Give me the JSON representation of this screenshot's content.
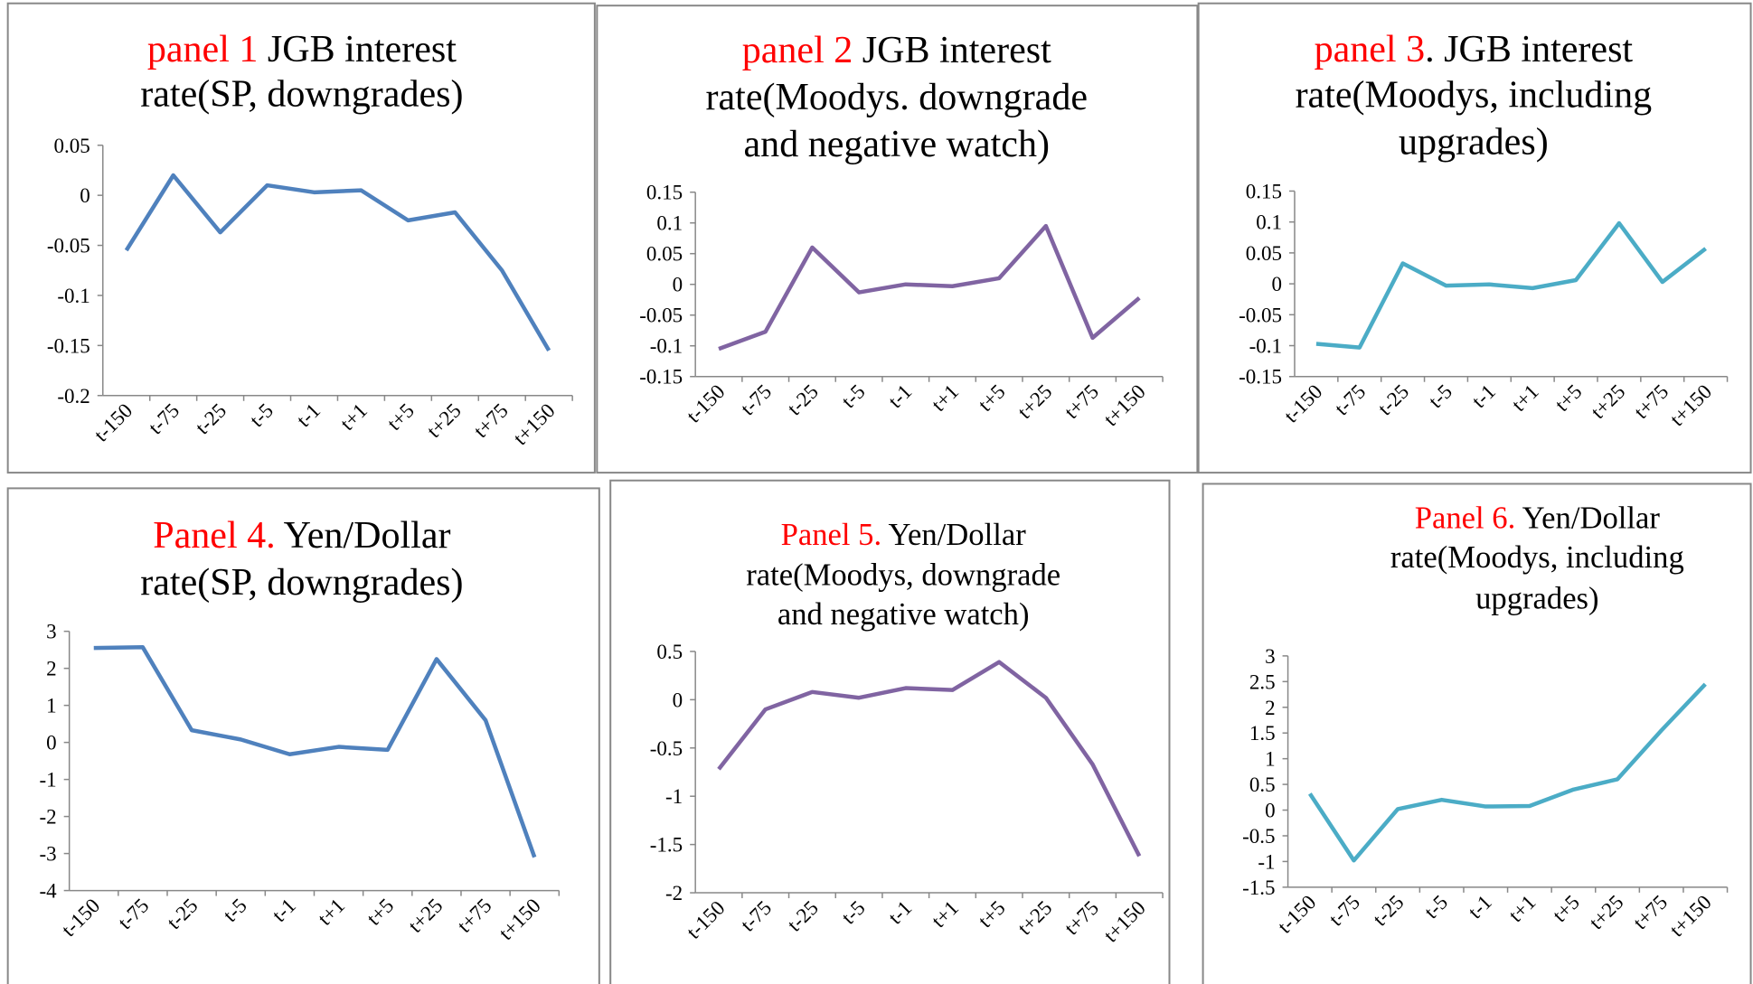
{
  "chart_data": [
    {
      "type": "line",
      "title": {
        "highlight": "panel 1",
        "lines": [
          " JGB interest",
          "rate(SP, downgrades)"
        ]
      },
      "categories": [
        "t-150",
        "t-75",
        "t-25",
        "t-5",
        "t-1",
        "t+1",
        "t+5",
        "t+25",
        "t+75",
        "t+150"
      ],
      "values": [
        -0.055,
        0.02,
        -0.037,
        0.01,
        0.003,
        0.005,
        -0.025,
        -0.017,
        -0.075,
        -0.155
      ],
      "color": "#4f81bd",
      "ylim": [
        -0.2,
        0.05
      ],
      "yticks": [
        -0.2,
        -0.15,
        -0.1,
        -0.05,
        0,
        0.05
      ]
    },
    {
      "type": "line",
      "title": {
        "highlight": "panel 2",
        "lines": [
          " JGB interest",
          "rate(Moodys. downgrade",
          "and negative watch)"
        ]
      },
      "categories": [
        "t-150",
        "t-75",
        "t-25",
        "t-5",
        "t-1",
        "t+1",
        "t+5",
        "t+25",
        "t+75",
        "t+150"
      ],
      "values": [
        -0.105,
        -0.077,
        0.06,
        -0.013,
        0,
        -0.003,
        0.01,
        0.095,
        -0.087,
        -0.022
      ],
      "color": "#8064a2",
      "ylim": [
        -0.15,
        0.15
      ],
      "yticks": [
        -0.15,
        -0.1,
        -0.05,
        0,
        0.05,
        0.1,
        0.15
      ]
    },
    {
      "type": "line",
      "title": {
        "highlight": "panel 3",
        "lines": [
          ". JGB interest",
          "rate(Moodys, including",
          "upgrades)"
        ]
      },
      "categories": [
        "t-150",
        "t-75",
        "t-25",
        "t-5",
        "t-1",
        "t+1",
        "t+5",
        "t+25",
        "t+75",
        "t+150"
      ],
      "values": [
        -0.097,
        -0.103,
        0.033,
        -0.003,
        -0.001,
        -0.007,
        0.006,
        0.098,
        0.003,
        0.057
      ],
      "color": "#4bacc6",
      "ylim": [
        -0.15,
        0.15
      ],
      "yticks": [
        -0.15,
        -0.1,
        -0.05,
        0,
        0.05,
        0.1,
        0.15
      ]
    },
    {
      "type": "line",
      "title": {
        "highlight": "Panel 4.",
        "lines": [
          " Yen/Dollar",
          "rate(SP, downgrades)"
        ]
      },
      "categories": [
        "t-150",
        "t-75",
        "t-25",
        "t-5",
        "t-1",
        "t+1",
        "t+5",
        "t+25",
        "t+75",
        "t+150"
      ],
      "values": [
        2.55,
        2.57,
        0.33,
        0.08,
        -0.32,
        -0.12,
        -0.2,
        2.25,
        0.6,
        -3.1
      ],
      "color": "#4f81bd",
      "ylim": [
        -4,
        3
      ],
      "yticks": [
        -4,
        -3,
        -2,
        -1,
        0,
        1,
        2,
        3
      ]
    },
    {
      "type": "line",
      "title": {
        "highlight": "Panel 5.",
        "lines": [
          " Yen/Dollar",
          "rate(Moodys, downgrade",
          "and negative watch)"
        ]
      },
      "categories": [
        "t-150",
        "t-75",
        "t-25",
        "t-5",
        "t-1",
        "t+1",
        "t+5",
        "t+25",
        "t+75",
        "t+150"
      ],
      "values": [
        -0.72,
        -0.1,
        0.08,
        0.02,
        0.12,
        0.1,
        0.39,
        0.02,
        -0.67,
        -1.62
      ],
      "color": "#8064a2",
      "ylim": [
        -2,
        0.5
      ],
      "yticks": [
        -2,
        -1.5,
        -1,
        -0.5,
        0,
        0.5
      ]
    },
    {
      "type": "line",
      "title": {
        "highlight": "Panel 6.",
        "lines": [
          " Yen/Dollar",
          "rate(Moodys, including",
          "upgrades)"
        ]
      },
      "categories": [
        "t-150",
        "t-75",
        "t-25",
        "t-5",
        "t-1",
        "t+1",
        "t+5",
        "t+25",
        "t+75",
        "t+150"
      ],
      "values": [
        0.32,
        -0.98,
        0.02,
        0.2,
        0.07,
        0.08,
        0.4,
        0.6,
        1.55,
        2.45
      ],
      "color": "#4bacc6",
      "ylim": [
        -1.5,
        3
      ],
      "yticks": [
        -1.5,
        -1,
        -0.5,
        0,
        0.5,
        1,
        1.5,
        2,
        2.5,
        3
      ]
    }
  ]
}
